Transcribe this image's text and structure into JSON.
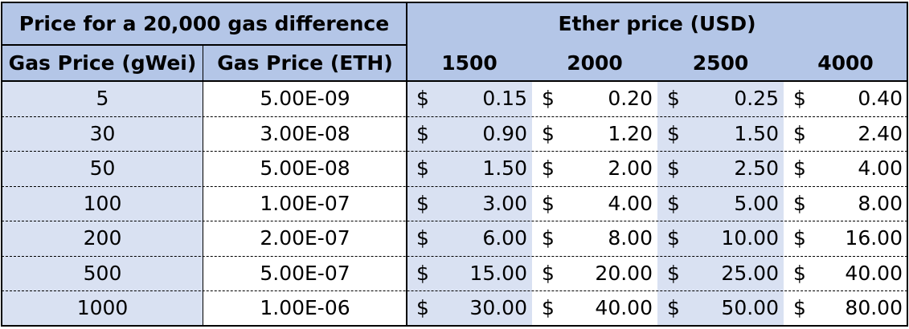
{
  "chart_data": {
    "type": "table",
    "title": "Price for a 20,000 gas difference",
    "group_header": "Ether price (USD)",
    "columns": [
      "Gas Price (gWei)",
      "Gas Price (ETH)",
      "1500",
      "2000",
      "2500",
      "4000"
    ],
    "currency_symbol": "$",
    "rows": [
      {
        "gwei": "5",
        "eth": "5.00E-09",
        "values": [
          "0.15",
          "0.20",
          "0.25",
          "0.40"
        ]
      },
      {
        "gwei": "30",
        "eth": "3.00E-08",
        "values": [
          "0.90",
          "1.20",
          "1.50",
          "2.40"
        ]
      },
      {
        "gwei": "50",
        "eth": "5.00E-08",
        "values": [
          "1.50",
          "2.00",
          "2.50",
          "4.00"
        ]
      },
      {
        "gwei": "100",
        "eth": "1.00E-07",
        "values": [
          "3.00",
          "4.00",
          "5.00",
          "8.00"
        ]
      },
      {
        "gwei": "200",
        "eth": "2.00E-07",
        "values": [
          "6.00",
          "8.00",
          "10.00",
          "16.00"
        ]
      },
      {
        "gwei": "500",
        "eth": "5.00E-07",
        "values": [
          "15.00",
          "20.00",
          "25.00",
          "40.00"
        ]
      },
      {
        "gwei": "1000",
        "eth": "1.00E-06",
        "values": [
          "30.00",
          "40.00",
          "50.00",
          "80.00"
        ]
      }
    ]
  },
  "colors": {
    "header_fill": "#b4c6e7",
    "light_fill": "#d9e1f2",
    "white_fill": "#ffffff",
    "border": "#000000",
    "row_divider": "#000000"
  }
}
